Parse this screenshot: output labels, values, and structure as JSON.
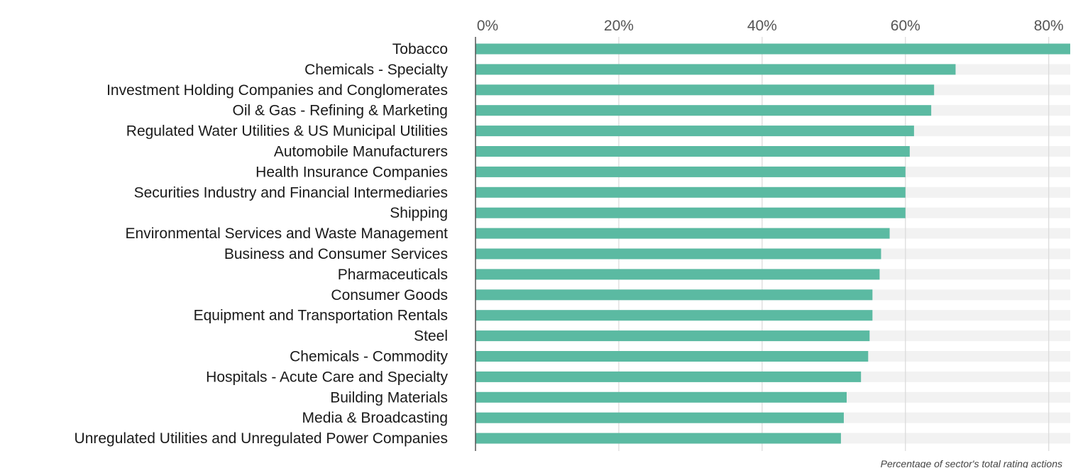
{
  "chart_data": {
    "type": "bar",
    "orientation": "horizontal",
    "title": "",
    "xlabel": "Percentage of sector's total rating actions",
    "ylabel": "",
    "xlim": [
      0,
      83
    ],
    "x_ticks": [
      0,
      20,
      40,
      60,
      80
    ],
    "x_tick_labels": [
      "0%",
      "20%",
      "40%",
      "60%",
      "80%"
    ],
    "grid": true,
    "categories": [
      "Tobacco",
      "Chemicals - Specialty",
      "Investment Holding Companies and Conglomerates",
      "Oil & Gas - Refining & Marketing",
      "Regulated Water Utilities & US Municipal Utilities",
      "Automobile Manufacturers",
      "Health Insurance Companies",
      "Securities Industry and Financial Intermediaries",
      "Shipping",
      "Environmental Services and Waste Management",
      "Business and Consumer Services",
      "Pharmaceuticals",
      "Consumer Goods",
      "Equipment and Transportation Rentals",
      "Steel",
      "Chemicals - Commodity",
      "Hospitals - Acute Care and Specialty",
      "Building Materials",
      "Media & Broadcasting",
      "Unregulated Utilities and Unregulated Power Companies"
    ],
    "values": [
      83,
      67,
      64,
      63.6,
      61.2,
      60.6,
      60,
      60,
      60,
      57.8,
      56.6,
      56.4,
      55.4,
      55.4,
      55,
      54.8,
      53.8,
      51.8,
      51.4,
      51
    ],
    "colors": {
      "bar": "#5bbaa2",
      "track": "#f2f2f2",
      "grid": "#d9d9d9",
      "axis": "#555555"
    }
  }
}
